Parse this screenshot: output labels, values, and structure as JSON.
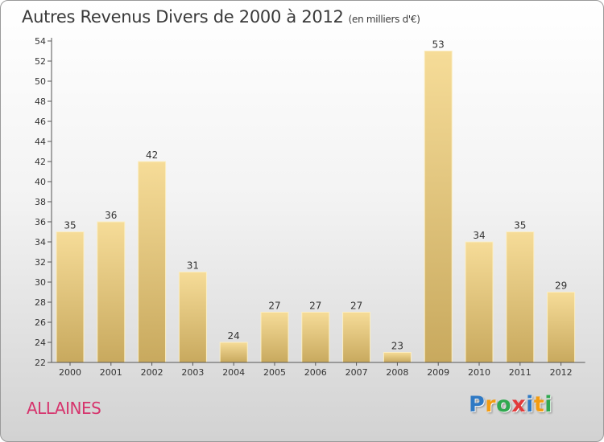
{
  "header": {
    "title": "Autres Revenus Divers de 2000 à 2012",
    "unit": "(en milliers d'€)"
  },
  "commune": "ALLAINES",
  "logo": {
    "letters": [
      {
        "char": "P",
        "color": "#2f79c4"
      },
      {
        "char": "r",
        "color": "#f39c12"
      },
      {
        "char": "o",
        "color": "#2fa84f"
      },
      {
        "char": "x",
        "color": "#e23a3a"
      },
      {
        "char": "i",
        "color": "#2f79c4"
      },
      {
        "char": "t",
        "color": "#f39c12"
      },
      {
        "char": "i",
        "color": "#2fa84f"
      }
    ]
  },
  "chart_data": {
    "type": "bar",
    "title": "Autres Revenus Divers de 2000 à 2012",
    "subtitle": "(en milliers d'€)",
    "categories": [
      "2000",
      "2001",
      "2002",
      "2003",
      "2004",
      "2005",
      "2006",
      "2007",
      "2008",
      "2009",
      "2010",
      "2011",
      "2012"
    ],
    "values": [
      35,
      36,
      42,
      31,
      24,
      27,
      27,
      27,
      23,
      53,
      34,
      35,
      29
    ],
    "ylim": [
      22,
      54
    ],
    "yticks": [
      22,
      24,
      26,
      28,
      30,
      32,
      34,
      36,
      38,
      40,
      42,
      44,
      46,
      48,
      50,
      52,
      54
    ],
    "grid": false,
    "bar_color": "#e6c77a"
  }
}
